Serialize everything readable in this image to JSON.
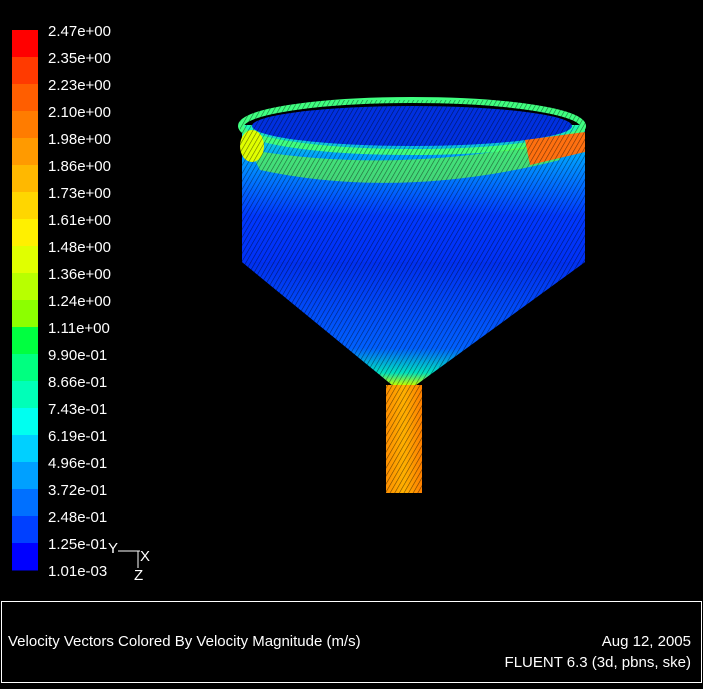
{
  "colorbar": {
    "labels": [
      "2.47e+00",
      "2.35e+00",
      "2.23e+00",
      "2.10e+00",
      "1.98e+00",
      "1.86e+00",
      "1.73e+00",
      "1.61e+00",
      "1.48e+00",
      "1.36e+00",
      "1.24e+00",
      "1.11e+00",
      "9.90e-01",
      "8.66e-01",
      "7.43e-01",
      "6.19e-01",
      "4.96e-01",
      "3.72e-01",
      "2.48e-01",
      "1.25e-01",
      "1.01e-03"
    ],
    "colors": [
      "#ff0000",
      "#ff3a00",
      "#ff5e00",
      "#ff7c00",
      "#ff9a00",
      "#ffb800",
      "#ffd600",
      "#fff000",
      "#e0ff00",
      "#b8ff00",
      "#8cff00",
      "#00ff40",
      "#00ff80",
      "#00ffb8",
      "#00fff0",
      "#00d0ff",
      "#00a0ff",
      "#0070ff",
      "#0040ff",
      "#0000ff"
    ]
  },
  "axes": {
    "y": "Y",
    "x": "X",
    "z": "Z"
  },
  "footer": {
    "title": "Velocity Vectors Colored By Velocity Magnitude (m/s)",
    "date": "Aug 12, 2005",
    "version": "FLUENT 6.3 (3d, pbns, ske)"
  }
}
